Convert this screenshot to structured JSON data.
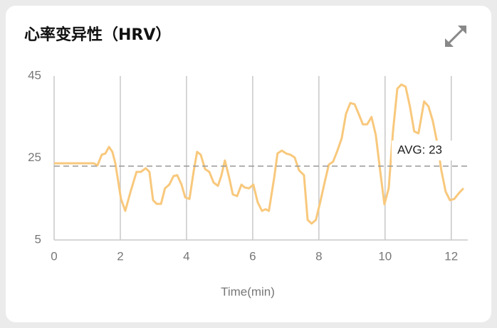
{
  "chart_data": {
    "type": "line",
    "title": "心率变异性（HRV）",
    "xlabel": "Time(min)",
    "x": [
      0,
      1.2,
      1.31,
      1.44,
      1.55,
      1.66,
      1.76,
      1.85,
      2.02,
      2.15,
      2.3,
      2.49,
      2.62,
      2.77,
      2.88,
      2.99,
      3.1,
      3.23,
      3.35,
      3.48,
      3.61,
      3.72,
      3.85,
      3.96,
      4.09,
      4.22,
      4.32,
      4.43,
      4.56,
      4.69,
      4.82,
      4.95,
      5.05,
      5.16,
      5.29,
      5.4,
      5.53,
      5.66,
      5.76,
      5.89,
      6.02,
      6.15,
      6.28,
      6.39,
      6.49,
      6.65,
      6.75,
      6.88,
      7.01,
      7.14,
      7.27,
      7.4,
      7.55,
      7.66,
      7.78,
      7.91,
      8.04,
      8.17,
      8.3,
      8.43,
      8.56,
      8.69,
      8.82,
      8.95,
      9.08,
      9.2,
      9.33,
      9.46,
      9.59,
      9.72,
      9.85,
      9.98,
      10.11,
      10.24,
      10.37,
      10.49,
      10.62,
      10.75,
      10.88,
      11.01,
      11.18,
      11.31,
      11.44,
      11.57,
      11.7,
      11.83,
      11.96,
      12.09,
      12.24,
      12.37
    ],
    "series": [
      {
        "name": "HRV",
        "color": "#f8c87c",
        "values": [
          23.7,
          23.7,
          23.2,
          25.8,
          26.1,
          27.7,
          26.5,
          23.7,
          15,
          12.1,
          16.5,
          21.6,
          21.6,
          22.5,
          21.6,
          14.7,
          13.8,
          13.8,
          17.6,
          18.5,
          20.6,
          20.8,
          18.5,
          15.4,
          15,
          21.9,
          26.5,
          25.8,
          22.3,
          21.6,
          19,
          18.2,
          20.6,
          24.4,
          20.2,
          16.1,
          15.7,
          18.5,
          17.8,
          17.6,
          18.5,
          14.2,
          12.1,
          12.5,
          12.1,
          20.2,
          26.1,
          26.8,
          26.1,
          25.8,
          25.1,
          22,
          20.8,
          9.9,
          9,
          9.9,
          14.2,
          18.9,
          23.4,
          24.1,
          26.8,
          29.8,
          35.8,
          38.4,
          38.1,
          35.8,
          33.2,
          33.2,
          35,
          30.6,
          22,
          13.7,
          17.6,
          31.5,
          41.9,
          42.9,
          42.4,
          37.6,
          31.5,
          31,
          38.8,
          37.6,
          34.1,
          28.9,
          22,
          16.8,
          14.7,
          15,
          16.5,
          17.6
        ]
      }
    ],
    "average": {
      "value": 23,
      "label": "AVG: 23"
    },
    "xlim": [
      0,
      12.5
    ],
    "xticks": [
      0,
      2,
      4,
      6,
      8,
      10,
      12
    ],
    "ylim": [
      5,
      45
    ],
    "yticks": [
      5,
      25,
      45
    ],
    "grid": true
  }
}
